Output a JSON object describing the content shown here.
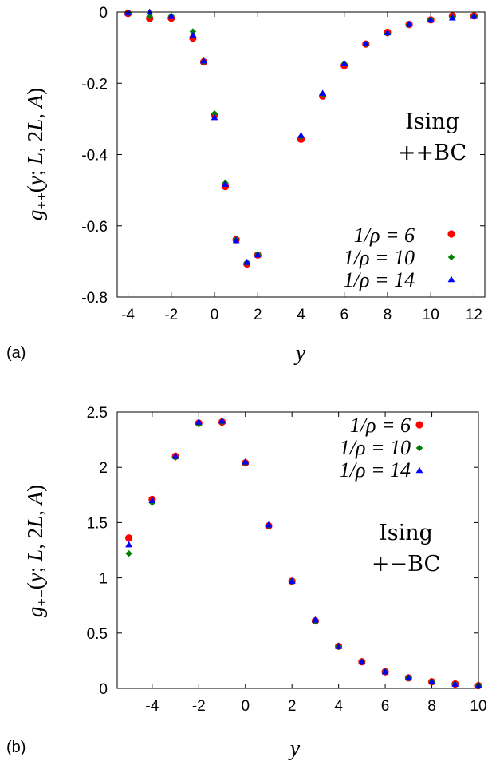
{
  "chart_data": [
    {
      "type": "scatter",
      "panel_label": "(a)",
      "xlabel": "y",
      "ylabel": "g++(y; L, 2L, A)",
      "xlim": [
        -4.5,
        12.5
      ],
      "ylim": [
        -0.8,
        0
      ],
      "xticks": [
        -4,
        -2,
        0,
        2,
        4,
        6,
        8,
        10,
        12
      ],
      "yticks": [
        0,
        -0.2,
        -0.4,
        -0.6,
        -0.8
      ],
      "annotation": [
        "Ising",
        "++BC"
      ],
      "grid": false,
      "legend_position": "bottom-right",
      "series": [
        {
          "name": "1/ρ = 6",
          "marker": "circle",
          "color": "#ff0000",
          "x": [
            -4,
            -3,
            -2,
            -1,
            -0.5,
            0,
            0.5,
            1,
            1.5,
            2,
            4,
            5,
            6,
            7,
            8,
            9,
            10,
            11,
            12
          ],
          "y": [
            -0.004,
            -0.018,
            -0.017,
            -0.073,
            -0.14,
            -0.29,
            -0.49,
            -0.639,
            -0.707,
            -0.682,
            -0.357,
            -0.236,
            -0.15,
            -0.09,
            -0.057,
            -0.035,
            -0.022,
            -0.011,
            -0.011
          ]
        },
        {
          "name": "1/ρ = 10",
          "marker": "diamond",
          "color": "#008000",
          "x": [
            -4,
            -3,
            -2,
            -1,
            -0.5,
            0,
            0.5,
            1,
            1.5,
            2,
            4,
            5,
            6,
            7,
            8,
            9,
            10,
            11,
            12
          ],
          "y": [
            -0.003,
            -0.012,
            -0.011,
            -0.055,
            -0.14,
            -0.285,
            -0.48,
            -0.639,
            -0.703,
            -0.68,
            -0.35,
            -0.232,
            -0.145,
            -0.09,
            -0.06,
            -0.035,
            -0.022,
            -0.015,
            -0.012
          ]
        },
        {
          "name": "1/ρ = 14",
          "marker": "triangle",
          "color": "#0000ff",
          "x": [
            -4,
            -3,
            -2,
            -1,
            -0.5,
            0,
            0.5,
            1,
            1.5,
            2,
            4,
            5,
            6,
            7,
            8,
            9,
            10,
            11,
            12
          ],
          "y": [
            -0.002,
            0.0,
            -0.012,
            -0.065,
            -0.137,
            -0.296,
            -0.483,
            -0.641,
            -0.702,
            -0.681,
            -0.346,
            -0.228,
            -0.145,
            -0.089,
            -0.058,
            -0.034,
            -0.022,
            -0.016,
            -0.012
          ]
        }
      ]
    },
    {
      "type": "scatter",
      "panel_label": "(b)",
      "xlabel": "y",
      "ylabel": "g+−(y; L, 2L, A)",
      "xlim": [
        -5.5,
        10
      ],
      "ylim": [
        0,
        2.5
      ],
      "xticks": [
        -4,
        -2,
        0,
        2,
        4,
        6,
        8,
        10
      ],
      "yticks": [
        0,
        0.5,
        1,
        1.5,
        2,
        2.5
      ],
      "annotation": [
        "Ising",
        "+−BC"
      ],
      "grid": false,
      "legend_position": "top-right",
      "series": [
        {
          "name": "1/ρ = 6",
          "marker": "circle",
          "color": "#ff0000",
          "x": [
            -5,
            -4,
            -3,
            -2,
            -1,
            0,
            1,
            2,
            3,
            4,
            5,
            6,
            7,
            8,
            9,
            10
          ],
          "y": [
            1.36,
            1.71,
            2.1,
            2.4,
            2.41,
            2.04,
            1.47,
            0.97,
            0.61,
            0.38,
            0.24,
            0.15,
            0.095,
            0.06,
            0.04,
            0.025
          ]
        },
        {
          "name": "1/ρ = 10",
          "marker": "diamond",
          "color": "#008000",
          "x": [
            -5,
            -4,
            -3,
            -2,
            -1,
            0,
            1,
            2,
            3,
            4,
            5,
            6,
            7,
            8,
            9,
            10
          ],
          "y": [
            1.22,
            1.68,
            2.09,
            2.39,
            2.41,
            2.04,
            1.47,
            0.97,
            0.61,
            0.38,
            0.24,
            0.15,
            0.095,
            0.06,
            0.04,
            0.025
          ]
        },
        {
          "name": "1/ρ = 14",
          "marker": "triangle",
          "color": "#0000ff",
          "x": [
            -5,
            -4,
            -3,
            -2,
            -1,
            0,
            1,
            2,
            3,
            4,
            5,
            6,
            7,
            8,
            9,
            10
          ],
          "y": [
            1.3,
            1.7,
            2.1,
            2.41,
            2.42,
            2.05,
            1.48,
            0.97,
            0.62,
            0.38,
            0.24,
            0.15,
            0.095,
            0.06,
            0.04,
            0.025
          ]
        }
      ]
    }
  ]
}
